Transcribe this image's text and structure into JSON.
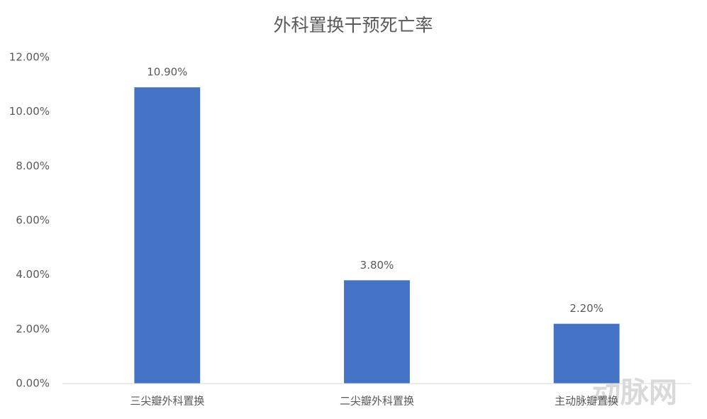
{
  "chart_data": {
    "type": "bar",
    "title": "外科置换干预死亡率",
    "categories": [
      "三尖瓣外科置换",
      "二尖瓣外科置换",
      "主动脉瓣置换"
    ],
    "values": [
      10.9,
      3.8,
      2.2
    ],
    "value_labels": [
      "10.90%",
      "3.80%",
      "2.20%"
    ],
    "color": "#4472c4",
    "ylim": [
      0,
      12
    ],
    "yticks": [
      {
        "value": 0,
        "label": "0.00%"
      },
      {
        "value": 2,
        "label": "2.00%"
      },
      {
        "value": 4,
        "label": "4.00%"
      },
      {
        "value": 6,
        "label": "6.00%"
      },
      {
        "value": 8,
        "label": "8.00%"
      },
      {
        "value": 10,
        "label": "10.00%"
      },
      {
        "value": 12,
        "label": "12.00%"
      }
    ],
    "grid": false,
    "watermark": "动脉网"
  }
}
